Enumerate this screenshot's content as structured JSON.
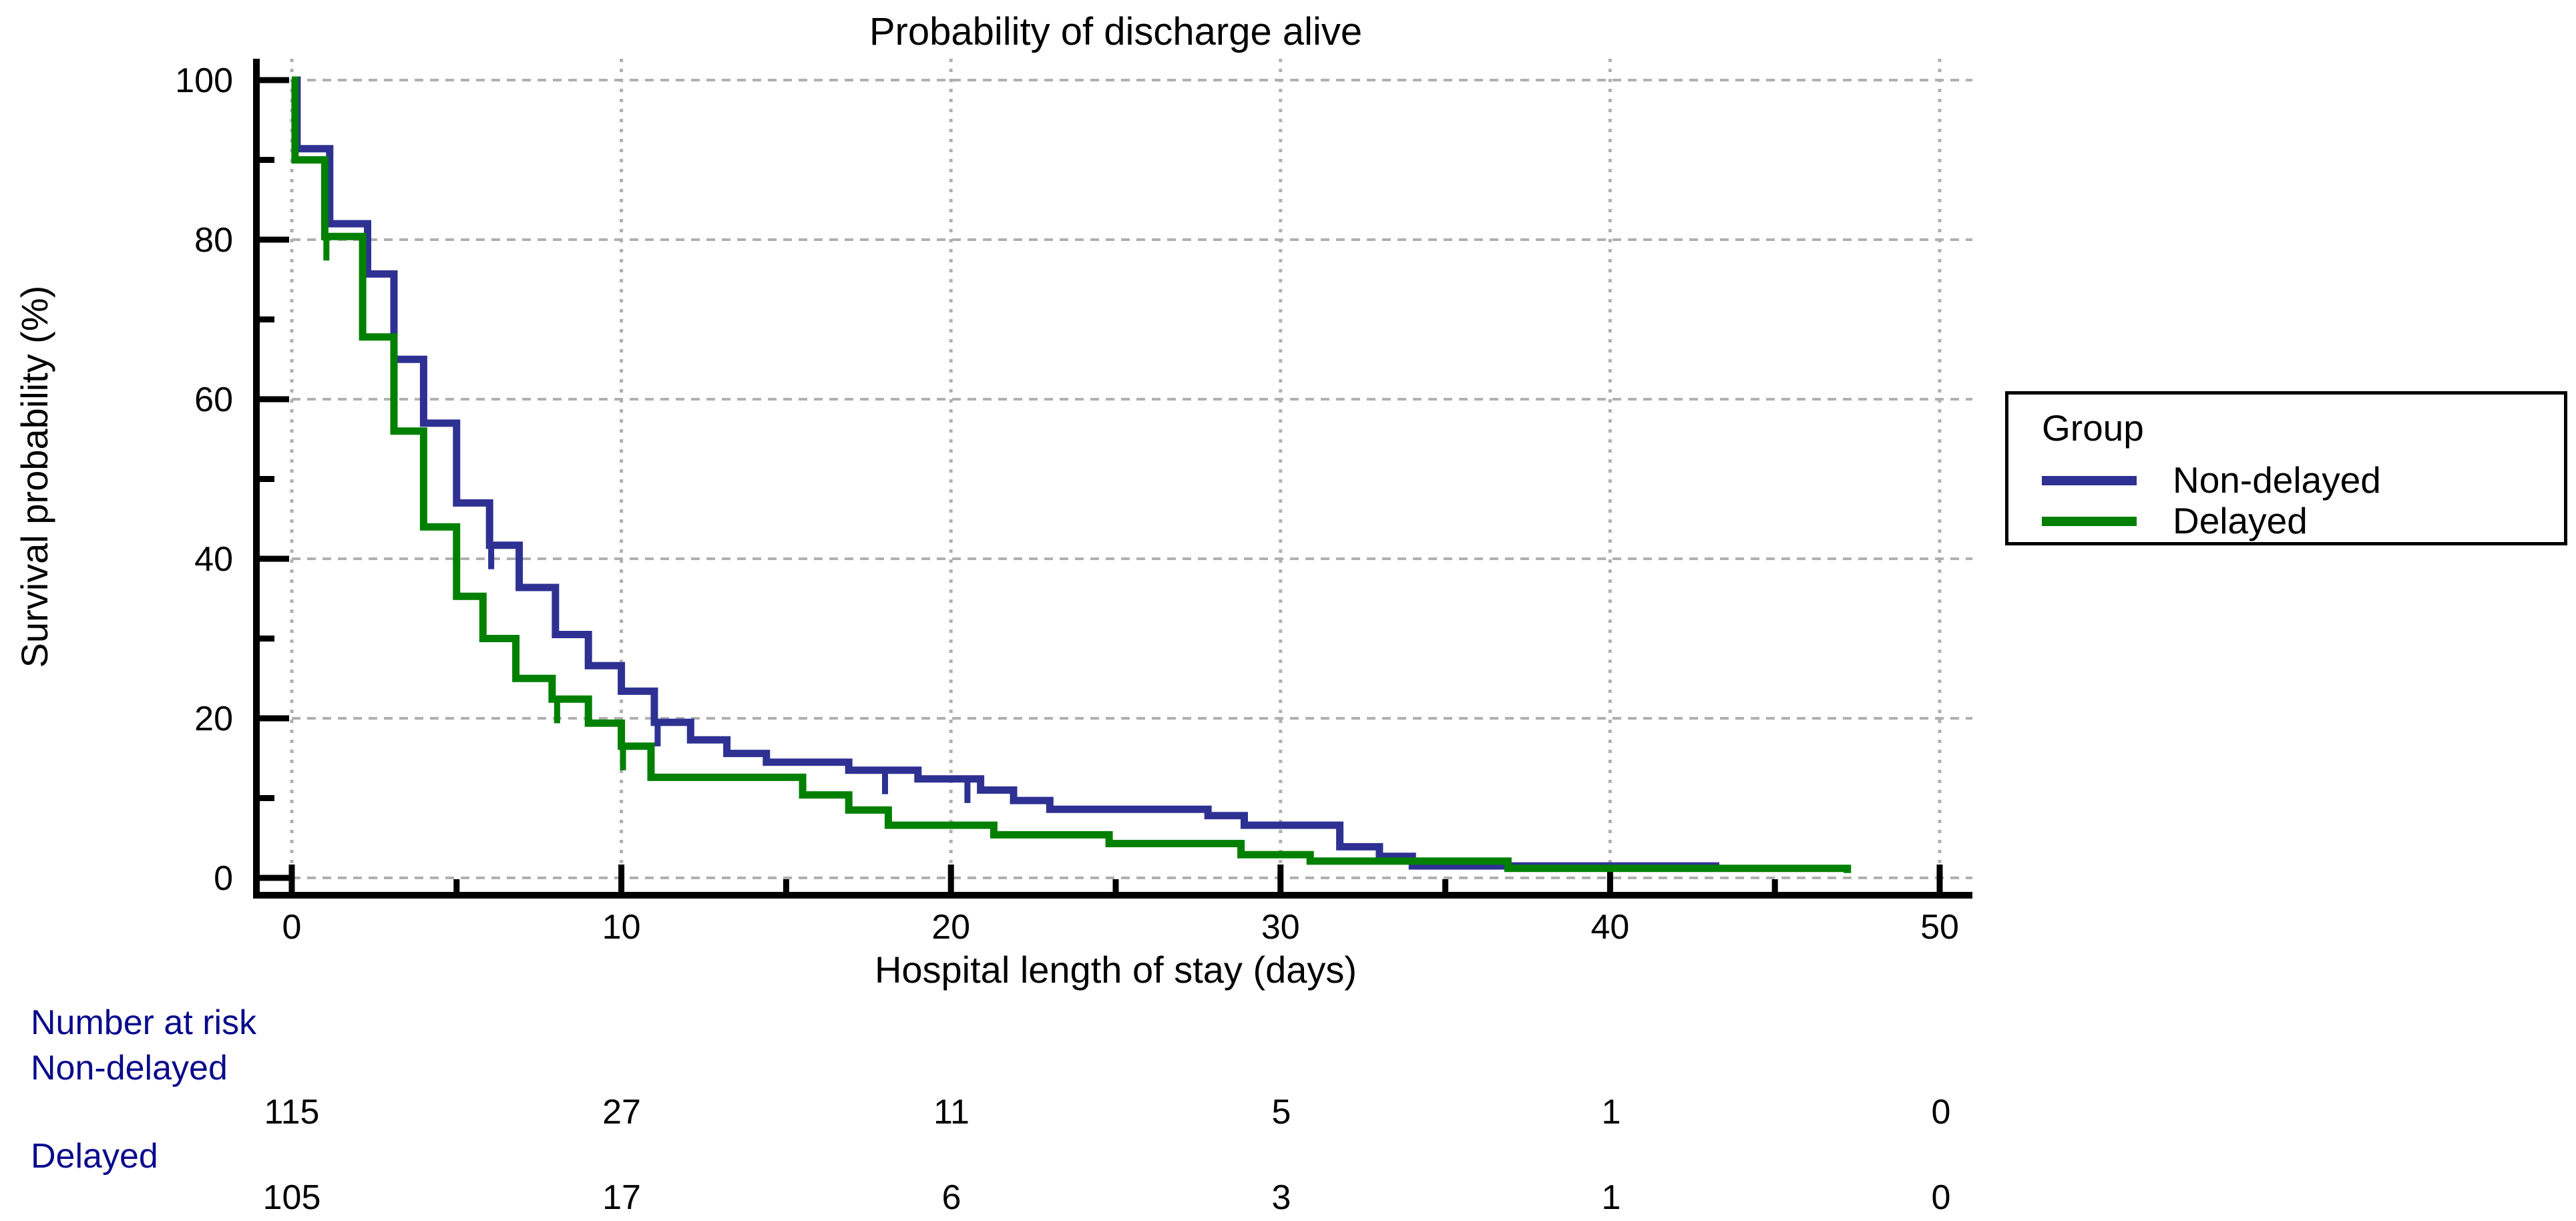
{
  "chart_data": {
    "type": "line",
    "variant": "kaplan_meier_step",
    "title": "Probability of discharge alive",
    "xlabel": "Hospital length of stay (days)",
    "ylabel": "Survival probability (%)",
    "xlim": [
      0,
      50
    ],
    "ylim": [
      0,
      100
    ],
    "x_major_ticks": [
      "0",
      "10",
      "20",
      "30",
      "40",
      "50"
    ],
    "x_minor_ticks": [
      5,
      15,
      25,
      35,
      45
    ],
    "y_major_ticks": [
      "0",
      "20",
      "40",
      "60",
      "80",
      "100"
    ],
    "y_minor_ticks": [
      10,
      30,
      50,
      70,
      90
    ],
    "grid": "dotted gray lines at major ticks",
    "legend_position": "right-outside",
    "series": [
      {
        "name": "Non-delayed",
        "color": "#2E3192",
        "step_points": [
          [
            0,
            100
          ],
          [
            0.16,
            91.4
          ],
          [
            1.15,
            82
          ],
          [
            2.3,
            75.7
          ],
          [
            3.1,
            65
          ],
          [
            4,
            57
          ],
          [
            5,
            47
          ],
          [
            6,
            41.7
          ],
          [
            6.9,
            36.4
          ],
          [
            8,
            30.5
          ],
          [
            9,
            26.6
          ],
          [
            10,
            23.4
          ],
          [
            11,
            19.5
          ],
          [
            12.1,
            17.3
          ],
          [
            13.2,
            15.6
          ],
          [
            14.4,
            14.5
          ],
          [
            16.9,
            13.5
          ],
          [
            19,
            12.4
          ],
          [
            20.9,
            11
          ],
          [
            21.9,
            9.7
          ],
          [
            23,
            8.6
          ],
          [
            27.8,
            7.8
          ],
          [
            28.9,
            6.6
          ],
          [
            31.8,
            3.9
          ],
          [
            33,
            2.7
          ],
          [
            34,
            1.5
          ],
          [
            43.2,
            0.8
          ]
        ],
        "censor_marks": [
          [
            6.05,
            41.7
          ],
          [
            11.1,
            19.5
          ],
          [
            18,
            13.5
          ],
          [
            20.5,
            12.4
          ]
        ]
      },
      {
        "name": "Delayed",
        "color": "#008000",
        "step_points": [
          [
            0,
            100
          ],
          [
            0.1,
            90
          ],
          [
            1,
            80.4
          ],
          [
            2.15,
            67.8
          ],
          [
            3.1,
            56
          ],
          [
            4,
            44
          ],
          [
            5,
            35.3
          ],
          [
            5.8,
            30
          ],
          [
            6.8,
            25
          ],
          [
            7.9,
            22.4
          ],
          [
            9,
            19.4
          ],
          [
            10,
            16.5
          ],
          [
            10.9,
            12.6
          ],
          [
            15.5,
            10.4
          ],
          [
            16.9,
            8.5
          ],
          [
            18.1,
            6.6
          ],
          [
            21.3,
            5.4
          ],
          [
            24.8,
            4.3
          ],
          [
            28.8,
            2.9
          ],
          [
            30.9,
            2.1
          ],
          [
            36.9,
            1.2
          ],
          [
            47.2,
            0.6
          ]
        ],
        "censor_marks": [
          [
            1.05,
            80.4
          ],
          [
            8.05,
            22.4
          ],
          [
            10.05,
            16.5
          ]
        ]
      }
    ]
  },
  "legend": {
    "title": "Group",
    "entries": [
      {
        "label": "Non-delayed",
        "color": "#2E3192"
      },
      {
        "label": "Delayed",
        "color": "#008000"
      }
    ]
  },
  "risk_table": {
    "title": "Number at risk",
    "time_points": [
      "0",
      "10",
      "20",
      "30",
      "40",
      "50"
    ],
    "rows": [
      {
        "label": "Non-delayed",
        "values": [
          "115",
          "27",
          "11",
          "5",
          "1",
          "0"
        ]
      },
      {
        "label": "Delayed",
        "values": [
          "105",
          "17",
          "6",
          "3",
          "1",
          "0"
        ]
      }
    ]
  },
  "colors": {
    "non_delayed": "#2E3192",
    "delayed": "#008000",
    "risk_text": "#0A0A8C",
    "grid": "#b0b0b0",
    "axis": "#000000",
    "background": "#ffffff"
  }
}
